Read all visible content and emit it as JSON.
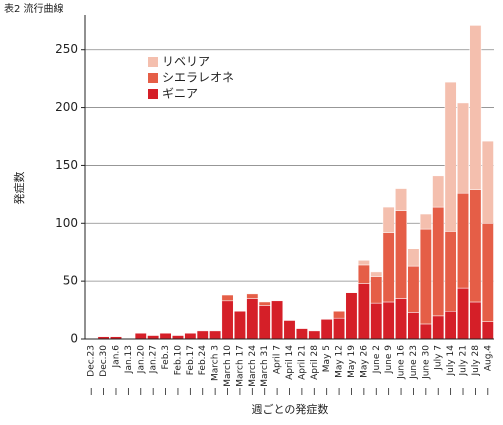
{
  "chart_data": {
    "type": "stacked_bar",
    "title": "表2 流行曲線",
    "y_label": "発症数",
    "x_label": "週ごとの発症数",
    "categories": [
      "Dec.23",
      "Dec.30",
      "Jan.6",
      "Jan.13",
      "Jan.20",
      "Jan.27",
      "Feb.3",
      "Feb.10",
      "Feb.17",
      "Feb.24",
      "March 3",
      "March 10",
      "March 17",
      "March 24",
      "March 31",
      "April 7",
      "April 14",
      "April 21",
      "April 28",
      "May 5",
      "May 12",
      "May 19",
      "May 26",
      "June 2",
      "June 9",
      "June 16",
      "June 23",
      "June 30",
      "July 7",
      "July 14",
      "July 21",
      "July 28",
      "Aug.4"
    ],
    "series": [
      {
        "name": "リベリア",
        "color": "#f4bfae",
        "values": [
          0,
          0,
          0,
          0,
          0,
          0,
          0,
          0,
          0,
          0,
          0,
          0,
          0,
          0,
          0,
          0,
          0,
          0,
          0,
          0,
          0,
          0,
          4,
          4,
          22,
          19,
          15,
          13,
          27,
          129,
          78,
          142,
          71
        ]
      },
      {
        "name": "シエラレオネ",
        "color": "#e55e47",
        "values": [
          0,
          0,
          0,
          0,
          0,
          0,
          0,
          0,
          0,
          0,
          0,
          5,
          0,
          4,
          3,
          0,
          0,
          0,
          0,
          0,
          6,
          0,
          16,
          23,
          60,
          76,
          40,
          82,
          94,
          69,
          82,
          97,
          85
        ]
      },
      {
        "name": "ギニア",
        "color": "#d51f28",
        "values": [
          0,
          2,
          2,
          0,
          5,
          3,
          5,
          3,
          5,
          7,
          7,
          33,
          24,
          35,
          29,
          33,
          16,
          9,
          7,
          17,
          18,
          40,
          48,
          31,
          32,
          35,
          23,
          13,
          20,
          24,
          44,
          32,
          15
        ]
      }
    ],
    "ylim": [
      0,
      280
    ],
    "yticks": [
      0,
      50,
      100,
      150,
      200,
      250
    ],
    "grid": true,
    "legend": "upper left"
  }
}
